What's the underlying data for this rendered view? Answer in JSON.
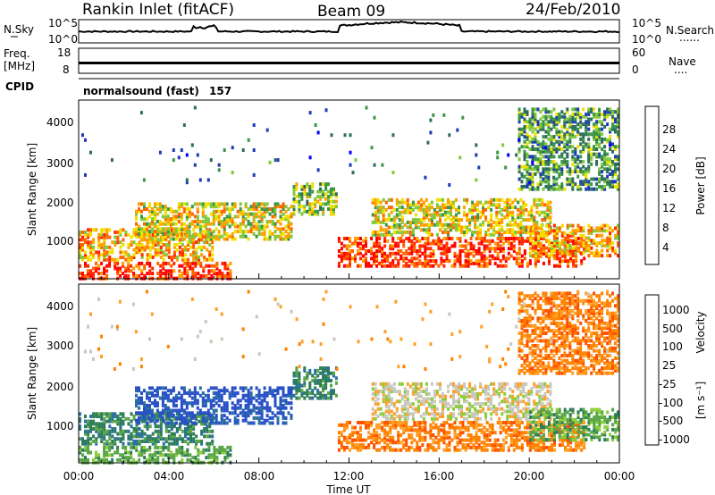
{
  "header": {
    "station": "Rankin Inlet (fitACF)",
    "beam": "Beam 09",
    "date": "24/Feb/2010"
  },
  "noise_panel": {
    "left_label": "N.Sky",
    "right_label": "N.Search",
    "right_label_dots": "......",
    "left_ticks": [
      "10^5",
      "10^0"
    ],
    "right_ticks": [
      "10^5",
      "10^0"
    ]
  },
  "freq_panel": {
    "left_label": "Freq.",
    "left_unit": "[MHz]",
    "right_label": "Nave",
    "right_label_dots": "....",
    "left_ticks": [
      "18",
      "8"
    ],
    "right_ticks": [
      "60",
      "0"
    ]
  },
  "cpid": {
    "label": "CPID",
    "mode": "normalsound (fast)",
    "id": "157"
  },
  "time_axis": {
    "title": "Time UT",
    "ticks": [
      "00:00",
      "04:00",
      "08:00",
      "12:00",
      "16:00",
      "20:00",
      "00:00"
    ]
  },
  "chart_data": [
    {
      "type": "heatmap",
      "name": "power",
      "ylabel": "Slant Range [km]",
      "yticks": [
        "1000",
        "2000",
        "3000",
        "4000"
      ],
      "ylim": [
        200,
        4500
      ],
      "xlim_hours": [
        0,
        24
      ],
      "colorbar": {
        "label": "Power [dB]",
        "ticks": [
          "28",
          "24",
          "20",
          "16",
          "12",
          "8",
          "4"
        ],
        "colors": [
          "#0000ff",
          "#1e3cb4",
          "#2d6e5a",
          "#3c9646",
          "#82c83c",
          "#f0e100",
          "#ffa000",
          "#ff6400",
          "#ff2800",
          "#ff0000"
        ]
      }
    },
    {
      "type": "heatmap",
      "name": "velocity",
      "ylabel": "Slant Range [km]",
      "yticks": [
        "1000",
        "2000",
        "3000",
        "4000"
      ],
      "ylim": [
        200,
        4500
      ],
      "xlim_hours": [
        0,
        24
      ],
      "colorbar": {
        "label": "Velocity",
        "label_unit": "[m s⁻¹]",
        "ticks": [
          "1000",
          "500",
          "100",
          "25",
          "-25",
          "-100",
          "-500",
          "-1000"
        ],
        "colors": [
          "#2850c8",
          "#2a70a0",
          "#2d7d5a",
          "#5aa646",
          "#8ccd3c",
          "#c8c8be",
          "#ffa028",
          "#ff8200",
          "#ff5000",
          "#ff0000"
        ]
      }
    }
  ]
}
